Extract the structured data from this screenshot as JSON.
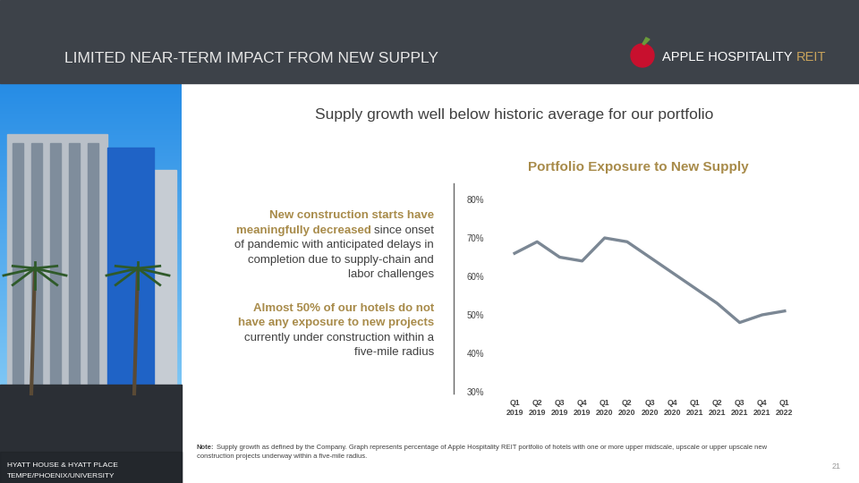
{
  "header": {
    "title": "LIMITED NEAR-TERM IMPACT FROM NEW SUPPLY",
    "logo": {
      "name": "APPLE HOSPITALITY",
      "suffix": "REIT"
    }
  },
  "subtitle": "Supply growth well below historic average for our portfolio",
  "callouts": [
    [
      {
        "bold": "New construction starts have"
      },
      {
        "bold": "meaningfully decreased",
        "plain": "since onset"
      },
      {
        "plain": "of pandemic with anticipated delays in"
      },
      {
        "plain": "completion due to supply-chain and"
      },
      {
        "plain": "labor challenges"
      }
    ],
    [
      {
        "bold": "Almost 50% of our hotels do not"
      },
      {
        "bold": "have any exposure to new projects"
      },
      {
        "plain": "currently under construction within a"
      },
      {
        "plain": "five-mile radius"
      }
    ]
  ],
  "chart_data": {
    "type": "line",
    "title": "Portfolio Exposure to New Supply",
    "categories": [
      "Q1\n2019",
      "Q2\n2019",
      "Q3\n2019",
      "Q4\n2019",
      "Q1\n2020",
      "Q2\n2020",
      "Q3\n2020",
      "Q4\n2020",
      "Q1\n2021",
      "Q2\n2021",
      "Q3\n2021",
      "Q4\n2021",
      "Q1\n2022"
    ],
    "values": [
      66,
      69,
      65,
      64,
      70,
      69,
      65,
      61,
      57,
      53,
      48,
      50,
      51
    ],
    "color": "#7b8794",
    "ylim": [
      30,
      80
    ],
    "yticks": [
      {
        "value": 30,
        "label": "30%"
      },
      {
        "value": 40,
        "label": "40%"
      },
      {
        "value": 50,
        "label": "50%"
      },
      {
        "value": 60,
        "label": "60%"
      },
      {
        "value": 70,
        "label": "70%"
      },
      {
        "value": 80,
        "label": "80%"
      }
    ],
    "grid": false
  },
  "note": {
    "label": "Note:",
    "lines": [
      "Supply growth as defined by the Company. Graph represents percentage of Apple Hospitality REIT portfolio of hotels with one or more upper midscale, upscale or upper upscale new",
      "construction projects underway within a five-mile radius."
    ]
  },
  "photo_caption": [
    "HYATT HOUSE & HYATT PLACE",
    "TEMPE/PHOENIX/UNIVERSITY"
  ],
  "page_number": "21"
}
